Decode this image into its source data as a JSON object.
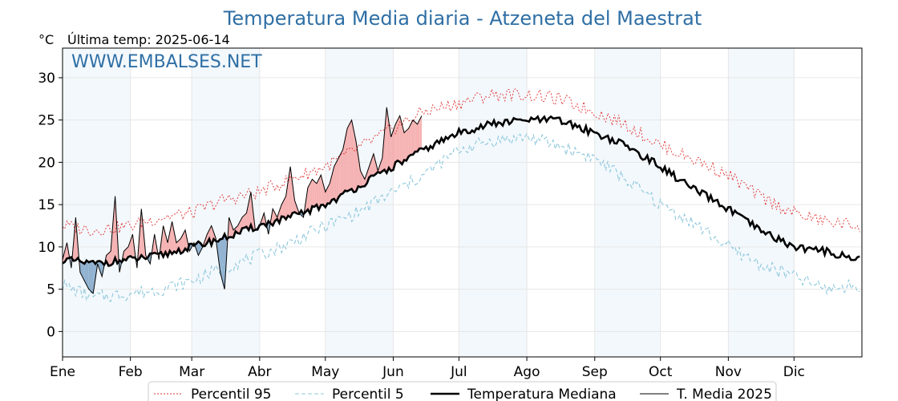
{
  "chart_data": {
    "type": "line",
    "title": "Temperatura Media diaria - Atzeneta del Maestrat",
    "unit_label": "°C",
    "last_temp_label": "Última temp: 2025-06-14",
    "watermark": "WWW.EMBALSES.NET",
    "months": [
      "Ene",
      "Feb",
      "Mar",
      "Abr",
      "May",
      "Jun",
      "Jul",
      "Ago",
      "Sep",
      "Oct",
      "Nov",
      "Dic"
    ],
    "ylim": [
      -3,
      33.5
    ],
    "yticks": [
      0,
      5,
      10,
      15,
      20,
      25,
      30
    ],
    "grid": true,
    "legend_position": "bottom",
    "series": [
      {
        "name": "Percentil 95",
        "color": "#e03030",
        "style": "dotted"
      },
      {
        "name": "Percentil 5",
        "color": "#8ec8dc",
        "style": "dashed"
      },
      {
        "name": "Temperatura Mediana",
        "color": "#000000",
        "style": "solid-thick"
      },
      {
        "name": "T. Media 2025",
        "color": "#000000",
        "style": "solid-thin"
      }
    ],
    "median": {
      "days": [
        1,
        15,
        32,
        46,
        60,
        74,
        91,
        105,
        121,
        135,
        152,
        166,
        182,
        196,
        213,
        227,
        244,
        258,
        274,
        288,
        305,
        319,
        335,
        349,
        365
      ],
      "values": [
        8.5,
        8.0,
        8.5,
        9.0,
        10.0,
        11.0,
        12.5,
        13.5,
        15.0,
        17.0,
        19.5,
        21.5,
        23.5,
        24.5,
        25.0,
        25.0,
        23.5,
        22.0,
        19.5,
        17.0,
        14.5,
        12.0,
        10.0,
        9.5,
        8.5
      ]
    },
    "p95": {
      "days": [
        1,
        15,
        32,
        46,
        60,
        74,
        91,
        105,
        121,
        135,
        152,
        166,
        182,
        196,
        213,
        227,
        244,
        258,
        274,
        288,
        305,
        319,
        335,
        349,
        365
      ],
      "values": [
        12.5,
        12.0,
        12.5,
        13.5,
        14.0,
        15.5,
        16.5,
        18.0,
        19.5,
        21.5,
        24.0,
        26.0,
        27.0,
        28.0,
        28.0,
        27.5,
        26.0,
        24.5,
        22.0,
        20.5,
        18.5,
        16.0,
        14.0,
        13.0,
        12.5
      ]
    },
    "p5": {
      "days": [
        1,
        15,
        32,
        46,
        60,
        74,
        91,
        105,
        121,
        135,
        152,
        166,
        182,
        196,
        213,
        227,
        244,
        258,
        274,
        288,
        305,
        319,
        335,
        349,
        365
      ],
      "values": [
        5.5,
        4.0,
        4.5,
        5.0,
        6.0,
        7.5,
        9.0,
        10.5,
        12.5,
        14.0,
        16.5,
        18.5,
        21.5,
        22.5,
        23.0,
        22.0,
        20.5,
        18.0,
        15.0,
        13.0,
        10.0,
        8.0,
        6.5,
        5.0,
        5.5
      ]
    },
    "t_media_2025": {
      "days": [
        1,
        3,
        5,
        7,
        9,
        11,
        13,
        15,
        17,
        19,
        21,
        23,
        25,
        27,
        29,
        31,
        33,
        35,
        37,
        39,
        41,
        43,
        45,
        47,
        49,
        51,
        53,
        55,
        57,
        59,
        61,
        63,
        65,
        67,
        69,
        71,
        73,
        75,
        77,
        79,
        81,
        83,
        85,
        87,
        89,
        91,
        93,
        95,
        97,
        99,
        101,
        103,
        105,
        107,
        109,
        111,
        113,
        115,
        117,
        119,
        121,
        123,
        125,
        127,
        129,
        131,
        133,
        135,
        137,
        139,
        141,
        143,
        145,
        147,
        149,
        151,
        153,
        155,
        157,
        159,
        161,
        163,
        165
      ],
      "values": [
        8.5,
        10.5,
        7.5,
        13.5,
        7.0,
        6.0,
        5.0,
        4.5,
        8.0,
        6.5,
        9.0,
        9.5,
        16.0,
        7.0,
        9.5,
        10.0,
        11.5,
        7.5,
        14.5,
        9.0,
        8.0,
        11.5,
        8.5,
        12.5,
        10.5,
        13.0,
        10.5,
        11.0,
        12.0,
        9.5,
        10.5,
        9.0,
        10.0,
        11.5,
        12.5,
        11.0,
        7.0,
        5.0,
        13.5,
        12.0,
        12.5,
        13.5,
        14.0,
        16.5,
        12.0,
        12.5,
        14.0,
        11.5,
        14.5,
        13.5,
        15.0,
        16.0,
        19.5,
        15.5,
        14.0,
        13.5,
        17.0,
        18.0,
        17.5,
        18.5,
        16.5,
        17.5,
        19.5,
        20.5,
        21.5,
        24.0,
        25.0,
        22.5,
        19.0,
        18.0,
        19.5,
        21.0,
        19.0,
        20.5,
        26.5,
        23.0,
        24.5,
        25.5,
        23.5,
        24.0,
        25.0,
        24.5,
        25.5
      ]
    }
  }
}
